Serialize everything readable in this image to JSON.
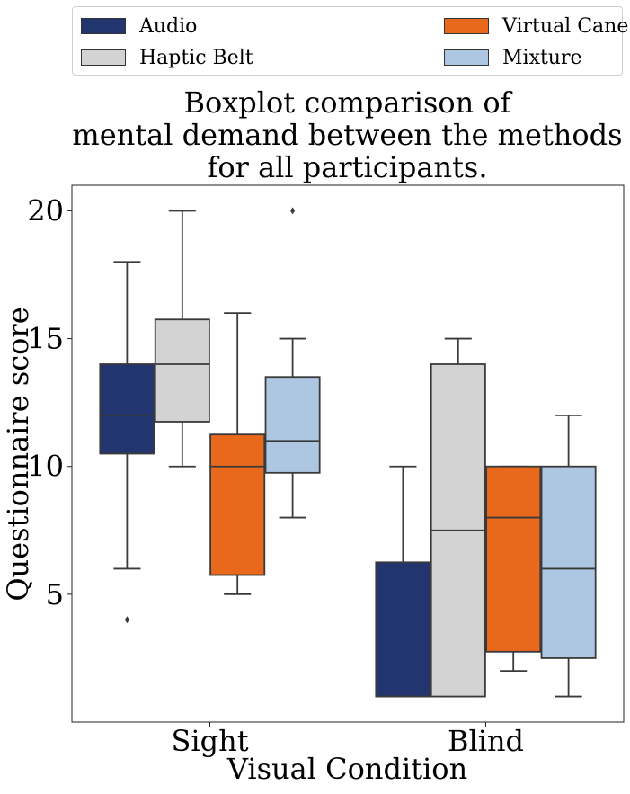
{
  "chart_data": {
    "type": "boxplot",
    "title_lines": [
      "Boxplot comparison of",
      "mental demand between the methods",
      "for all participants."
    ],
    "xlabel": "Visual Condition",
    "ylabel": "Questionnaire score",
    "ylim": [
      0,
      21
    ],
    "yticks": [
      5,
      10,
      15,
      20
    ],
    "categories": [
      "Sight",
      "Blind"
    ],
    "legend_position": "top",
    "series": [
      {
        "name": "Audio",
        "color": "#22356f",
        "boxes": [
          {
            "min": 6,
            "q1": 10.5,
            "median": 12,
            "q3": 14,
            "max": 18,
            "outliers": [
              4
            ]
          },
          {
            "min": 1,
            "q1": 1,
            "median": 1,
            "q3": 6.25,
            "max": 10,
            "outliers": []
          }
        ]
      },
      {
        "name": "Haptic Belt",
        "color": "#d3d3d3",
        "boxes": [
          {
            "min": 10,
            "q1": 11.75,
            "median": 14,
            "q3": 15.75,
            "max": 20,
            "outliers": []
          },
          {
            "min": 1,
            "q1": 1,
            "median": 7.5,
            "q3": 14,
            "max": 15,
            "outliers": []
          }
        ]
      },
      {
        "name": "Virtual Cane",
        "color": "#e8681c",
        "boxes": [
          {
            "min": 5,
            "q1": 5.75,
            "median": 10,
            "q3": 11.25,
            "max": 16,
            "outliers": []
          },
          {
            "min": 2,
            "q1": 2.75,
            "median": 8,
            "q3": 10,
            "max": 10,
            "outliers": []
          }
        ]
      },
      {
        "name": "Mixture",
        "color": "#adc6e2",
        "boxes": [
          {
            "min": 8,
            "q1": 9.75,
            "median": 11,
            "q3": 13.5,
            "max": 15,
            "outliers": [
              20
            ]
          },
          {
            "min": 1,
            "q1": 2.5,
            "median": 6,
            "q3": 10,
            "max": 12,
            "outliers": []
          }
        ]
      }
    ]
  }
}
